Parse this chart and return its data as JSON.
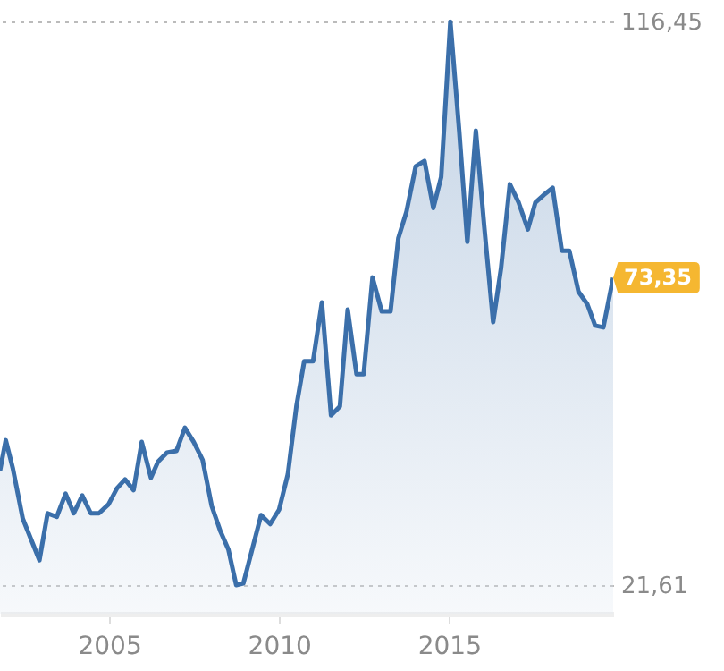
{
  "chart_data": {
    "type": "area",
    "x": [
      2001.79,
      2001.96,
      2002.17,
      2002.46,
      2002.95,
      2003.19,
      2003.46,
      2003.72,
      2003.96,
      2004.21,
      2004.46,
      2004.7,
      2004.98,
      2005.23,
      2005.47,
      2005.72,
      2005.96,
      2006.23,
      2006.44,
      2006.7,
      2006.98,
      2007.23,
      2007.49,
      2007.75,
      2008.02,
      2008.28,
      2008.51,
      2008.74,
      2008.95,
      2009.47,
      2009.74,
      2010.0,
      2010.26,
      2010.51,
      2010.74,
      2011.0,
      2011.26,
      2011.53,
      2011.79,
      2012.02,
      2012.28,
      2012.49,
      2012.75,
      2013.02,
      2013.28,
      2013.51,
      2013.75,
      2014.02,
      2014.28,
      2014.54,
      2014.77,
      2015.04,
      2015.3,
      2015.54,
      2015.79,
      2016.04,
      2016.3,
      2016.53,
      2016.79,
      2017.05,
      2017.32,
      2017.54,
      2017.79,
      2018.05,
      2018.32,
      2018.54,
      2018.81,
      2019.07,
      2019.3,
      2019.54,
      2019.83
    ],
    "series": [
      {
        "color": "#3b6faa",
        "values": [
          40.9,
          46.0,
          41.2,
          32.8,
          25.8,
          33.7,
          33.1,
          37.0,
          33.7,
          36.7,
          33.7,
          33.7,
          35.2,
          37.9,
          39.4,
          37.6,
          45.7,
          39.7,
          42.4,
          43.9,
          44.2,
          48.1,
          45.7,
          42.7,
          34.9,
          30.6,
          27.6,
          21.61,
          21.9,
          33.4,
          31.9,
          34.3,
          40.3,
          51.7,
          59.3,
          59.3,
          69.2,
          50.2,
          51.7,
          68.0,
          57.1,
          57.1,
          73.4,
          67.7,
          67.7,
          80.0,
          84.5,
          92.1,
          93.0,
          85.1,
          90.3,
          116.45,
          98.1,
          79.4,
          98.1,
          81.8,
          65.9,
          74.9,
          89.1,
          86.0,
          81.5,
          86.0,
          87.3,
          88.5,
          77.9,
          77.9,
          71.0,
          68.9,
          65.3,
          65.0,
          73.35
        ]
      }
    ],
    "xlim": [
      2001.79,
      2019.83
    ],
    "xticks": [
      2005,
      2010,
      2015
    ],
    "ylim": [
      16.8,
      120.1
    ],
    "yticks": [
      {
        "value": 21.61,
        "label": "21,61"
      },
      {
        "value": 116.45,
        "label": "116,45"
      }
    ],
    "grid": "y",
    "annotations": [
      {
        "text": "73,35",
        "x": 2019.83,
        "y": 73.35
      }
    ]
  }
}
